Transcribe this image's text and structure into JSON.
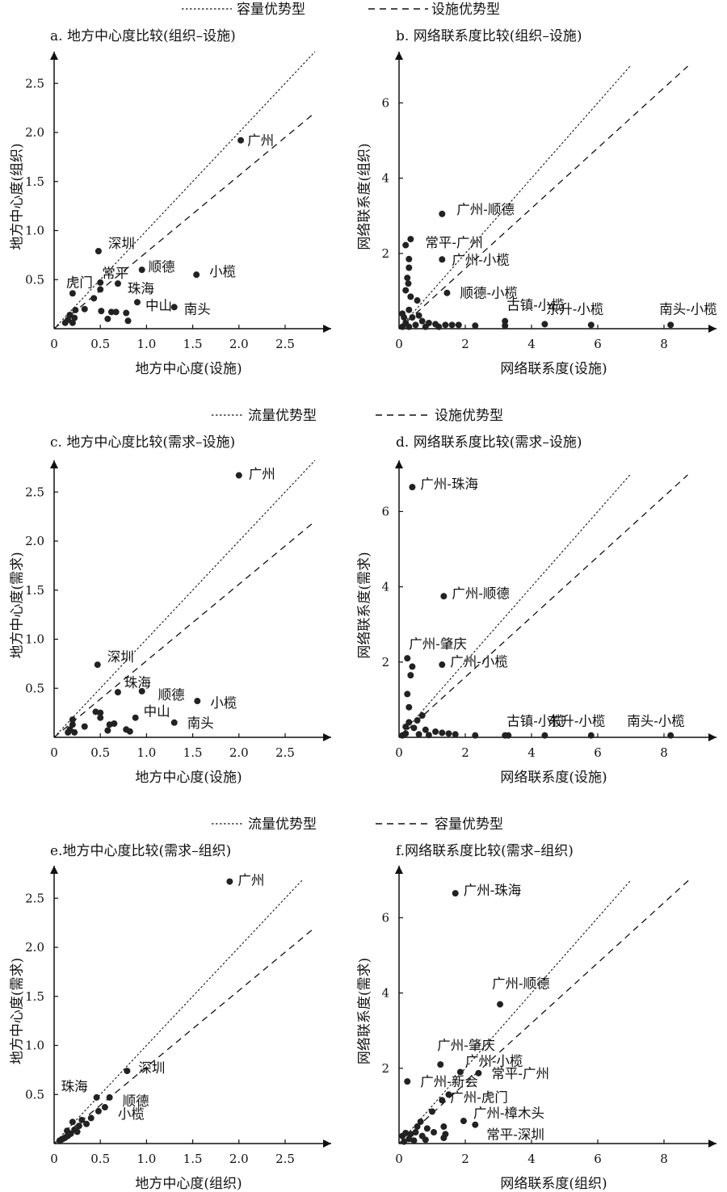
{
  "legends": [
    {
      "dotted": "容量优势型",
      "dashed": "设施优势型"
    },
    {
      "dotted": "流量优势型",
      "dashed": "设施优势型"
    },
    {
      "dotted": "流量优势型",
      "dashed": "容量优势型"
    }
  ],
  "chart_data": [
    {
      "id": "a",
      "type": "scatter",
      "title": "a. 地方中心度比较(组织–设施)",
      "xlabel": "地方中心度(设施)",
      "ylabel": "地方中心度(组织)",
      "xticks": [
        0,
        0.5,
        1.0,
        1.5,
        2.0,
        2.5
      ],
      "yticks": [
        0.5,
        1.0,
        1.5,
        2.0,
        2.5
      ],
      "xlim": [
        0,
        2.95
      ],
      "ylim": [
        0,
        2.95
      ],
      "ref_lines": [
        {
          "style": "dotted",
          "slope": 1.0
        },
        {
          "style": "dashed",
          "slope": 0.78
        }
      ],
      "points": [
        {
          "x": 2.02,
          "y": 1.92,
          "label": "广州"
        },
        {
          "x": 0.48,
          "y": 0.79,
          "label": "深圳"
        },
        {
          "x": 0.5,
          "y": 0.47,
          "label": "常平"
        },
        {
          "x": 0.95,
          "y": 0.6,
          "label": "顺德"
        },
        {
          "x": 1.54,
          "y": 0.55,
          "label": "小榄"
        },
        {
          "x": 0.69,
          "y": 0.46,
          "label": "珠海"
        },
        {
          "x": 0.9,
          "y": 0.27,
          "label": "中山"
        },
        {
          "x": 1.3,
          "y": 0.22,
          "label": "南头"
        },
        {
          "x": 0.2,
          "y": 0.36,
          "label": "虎门"
        },
        {
          "x": 0.5,
          "y": 0.4
        },
        {
          "x": 0.43,
          "y": 0.31
        },
        {
          "x": 0.33,
          "y": 0.2
        },
        {
          "x": 0.23,
          "y": 0.19
        },
        {
          "x": 0.17,
          "y": 0.14
        },
        {
          "x": 0.15,
          "y": 0.09
        },
        {
          "x": 0.12,
          "y": 0.06
        },
        {
          "x": 0.2,
          "y": 0.06
        },
        {
          "x": 0.22,
          "y": 0.11
        },
        {
          "x": 0.51,
          "y": 0.18
        },
        {
          "x": 0.58,
          "y": 0.1
        },
        {
          "x": 0.62,
          "y": 0.17
        },
        {
          "x": 0.67,
          "y": 0.17
        },
        {
          "x": 0.78,
          "y": 0.16
        },
        {
          "x": 0.8,
          "y": 0.08
        }
      ]
    },
    {
      "id": "b",
      "type": "scatter",
      "title": "b. 网络联系度比较(组织–设施)",
      "xlabel": "网络联系度(设施)",
      "ylabel": "网络联系度(组织)",
      "xticks": [
        0,
        2,
        4,
        6,
        8
      ],
      "yticks": [
        2,
        4,
        6
      ],
      "xlim": [
        0,
        9.5
      ],
      "ylim": [
        0,
        7.0
      ],
      "ref_lines": [
        {
          "style": "dotted",
          "slope": 1.0
        },
        {
          "style": "dashed",
          "slope": 0.8
        }
      ],
      "points": [
        {
          "x": 1.3,
          "y": 3.05,
          "label": "广州-顺德"
        },
        {
          "x": 0.35,
          "y": 2.38,
          "label": "常平-广州"
        },
        {
          "x": 1.3,
          "y": 1.84,
          "label": "广州-小榄"
        },
        {
          "x": 1.45,
          "y": 0.95,
          "label": "顺德-小榄"
        },
        {
          "x": 3.2,
          "y": 0.2,
          "label": "古镇-小榄"
        },
        {
          "x": 5.8,
          "y": 0.1,
          "label": "东升-小榄"
        },
        {
          "x": 8.2,
          "y": 0.1,
          "label": "南头-小榄"
        },
        {
          "x": 0.2,
          "y": 2.22
        },
        {
          "x": 0.3,
          "y": 1.85
        },
        {
          "x": 0.3,
          "y": 1.62
        },
        {
          "x": 0.25,
          "y": 1.35
        },
        {
          "x": 0.28,
          "y": 1.2
        },
        {
          "x": 0.2,
          "y": 1.02
        },
        {
          "x": 0.35,
          "y": 0.85
        },
        {
          "x": 0.55,
          "y": 0.75
        },
        {
          "x": 0.3,
          "y": 0.5
        },
        {
          "x": 0.1,
          "y": 0.4
        },
        {
          "x": 0.15,
          "y": 0.3
        },
        {
          "x": 0.4,
          "y": 0.3
        },
        {
          "x": 0.6,
          "y": 0.35
        },
        {
          "x": 0.7,
          "y": 0.2
        },
        {
          "x": 0.9,
          "y": 0.15
        },
        {
          "x": 0.2,
          "y": 0.15
        },
        {
          "x": 0.5,
          "y": 0.1
        },
        {
          "x": 1.1,
          "y": 0.12
        },
        {
          "x": 1.4,
          "y": 0.1
        },
        {
          "x": 1.6,
          "y": 0.1
        },
        {
          "x": 1.8,
          "y": 0.1
        },
        {
          "x": 2.3,
          "y": 0.08
        },
        {
          "x": 3.2,
          "y": 0.08
        },
        {
          "x": 4.4,
          "y": 0.12
        },
        {
          "x": 0.1,
          "y": 0.05
        },
        {
          "x": 0.3,
          "y": 0.05
        },
        {
          "x": 0.8,
          "y": 0.05
        },
        {
          "x": 1.2,
          "y": 0.05
        }
      ]
    },
    {
      "id": "c",
      "type": "scatter",
      "title": "c. 地方中心度比较(需求–设施)",
      "xlabel": "地方中心度(设施)",
      "ylabel": "地方中心度(需求)",
      "xticks": [
        0,
        0.5,
        1.0,
        1.5,
        2.0,
        2.5
      ],
      "yticks": [
        0.5,
        1.0,
        1.5,
        2.0,
        2.5
      ],
      "xlim": [
        0,
        2.95
      ],
      "ylim": [
        0,
        2.95
      ],
      "ref_lines": [
        {
          "style": "dotted",
          "slope": 1.0
        },
        {
          "style": "dashed",
          "slope": 0.78
        }
      ],
      "points": [
        {
          "x": 2.0,
          "y": 2.67,
          "label": "广州"
        },
        {
          "x": 0.47,
          "y": 0.74,
          "label": "深圳"
        },
        {
          "x": 0.69,
          "y": 0.46,
          "label": "珠海"
        },
        {
          "x": 0.95,
          "y": 0.47,
          "label": "顺德"
        },
        {
          "x": 1.55,
          "y": 0.37,
          "label": "小榄"
        },
        {
          "x": 0.88,
          "y": 0.2,
          "label": "中山"
        },
        {
          "x": 1.3,
          "y": 0.15,
          "label": "南头"
        },
        {
          "x": 0.45,
          "y": 0.26
        },
        {
          "x": 0.5,
          "y": 0.25
        },
        {
          "x": 0.5,
          "y": 0.2
        },
        {
          "x": 0.33,
          "y": 0.11
        },
        {
          "x": 0.2,
          "y": 0.18
        },
        {
          "x": 0.2,
          "y": 0.13
        },
        {
          "x": 0.17,
          "y": 0.08
        },
        {
          "x": 0.15,
          "y": 0.05
        },
        {
          "x": 0.22,
          "y": 0.05
        },
        {
          "x": 0.6,
          "y": 0.13
        },
        {
          "x": 0.65,
          "y": 0.14
        },
        {
          "x": 0.58,
          "y": 0.07
        },
        {
          "x": 0.78,
          "y": 0.08
        },
        {
          "x": 0.82,
          "y": 0.06
        }
      ]
    },
    {
      "id": "d",
      "type": "scatter",
      "title": "d. 网络联系度比较(需求–设施)",
      "xlabel": "网络联系度(设施)",
      "ylabel": "网络联系度(需求)",
      "xticks": [
        0,
        2,
        4,
        6,
        8
      ],
      "yticks": [
        2,
        4,
        6
      ],
      "xlim": [
        0,
        9.5
      ],
      "ylim": [
        0,
        7.0
      ],
      "ref_lines": [
        {
          "style": "dotted",
          "slope": 1.0
        },
        {
          "style": "dashed",
          "slope": 0.8
        }
      ],
      "points": [
        {
          "x": 0.4,
          "y": 6.65,
          "label": "广州-珠海"
        },
        {
          "x": 1.35,
          "y": 3.75,
          "label": "广州-顺德"
        },
        {
          "x": 0.25,
          "y": 2.1,
          "label": "广州-肇庆"
        },
        {
          "x": 1.3,
          "y": 1.93,
          "label": "广州-小榄"
        },
        {
          "x": 3.2,
          "y": 0.05,
          "label": "古镇-小榄"
        },
        {
          "x": 5.8,
          "y": 0.05,
          "label": "东升-小榄"
        },
        {
          "x": 8.2,
          "y": 0.05,
          "label": "南头-小榄"
        },
        {
          "x": 0.4,
          "y": 1.88
        },
        {
          "x": 0.35,
          "y": 1.65
        },
        {
          "x": 0.25,
          "y": 1.15
        },
        {
          "x": 0.3,
          "y": 0.8
        },
        {
          "x": 0.7,
          "y": 0.58
        },
        {
          "x": 0.55,
          "y": 0.45
        },
        {
          "x": 0.3,
          "y": 0.4
        },
        {
          "x": 0.2,
          "y": 0.28
        },
        {
          "x": 0.45,
          "y": 0.25
        },
        {
          "x": 0.8,
          "y": 0.2
        },
        {
          "x": 1.1,
          "y": 0.15
        },
        {
          "x": 1.3,
          "y": 0.12
        },
        {
          "x": 1.5,
          "y": 0.1
        },
        {
          "x": 1.7,
          "y": 0.08
        },
        {
          "x": 2.3,
          "y": 0.05
        },
        {
          "x": 3.3,
          "y": 0.05
        },
        {
          "x": 4.4,
          "y": 0.05
        },
        {
          "x": 0.1,
          "y": 0.05
        },
        {
          "x": 0.2,
          "y": 0.1
        },
        {
          "x": 0.6,
          "y": 0.08
        },
        {
          "x": 0.9,
          "y": 0.06
        }
      ]
    },
    {
      "id": "e",
      "type": "scatter",
      "title": "e.地方中心度比较(需求–组织)",
      "xlabel": "地方中心度(组织)",
      "ylabel": "地方中心度(需求)",
      "xticks": [
        0,
        0.5,
        1.0,
        1.5,
        2.0,
        2.5
      ],
      "yticks": [
        0.5,
        1.0,
        1.5,
        2.0,
        2.5
      ],
      "xlim": [
        0,
        2.95
      ],
      "ylim": [
        0,
        2.95
      ],
      "ref_lines": [
        {
          "style": "dotted",
          "slope": 1.0
        },
        {
          "style": "dashed",
          "slope": 0.78
        }
      ],
      "points": [
        {
          "x": 1.9,
          "y": 2.67,
          "label": "广州"
        },
        {
          "x": 0.79,
          "y": 0.74,
          "label": "深圳"
        },
        {
          "x": 0.46,
          "y": 0.47,
          "label": "珠海"
        },
        {
          "x": 0.6,
          "y": 0.47,
          "label": "顺德"
        },
        {
          "x": 0.55,
          "y": 0.37,
          "label": "小榄"
        },
        {
          "x": 0.48,
          "y": 0.33
        },
        {
          "x": 0.4,
          "y": 0.26
        },
        {
          "x": 0.35,
          "y": 0.2
        },
        {
          "x": 0.3,
          "y": 0.24
        },
        {
          "x": 0.27,
          "y": 0.18
        },
        {
          "x": 0.22,
          "y": 0.14
        },
        {
          "x": 0.2,
          "y": 0.22
        },
        {
          "x": 0.18,
          "y": 0.1
        },
        {
          "x": 0.15,
          "y": 0.08
        },
        {
          "x": 0.12,
          "y": 0.06
        },
        {
          "x": 0.1,
          "y": 0.05
        },
        {
          "x": 0.08,
          "y": 0.04
        },
        {
          "x": 0.06,
          "y": 0.03
        },
        {
          "x": 0.14,
          "y": 0.13
        },
        {
          "x": 0.25,
          "y": 0.12
        }
      ]
    },
    {
      "id": "f",
      "type": "scatter",
      "title": "f.网络联系度比较(需求–组织)",
      "xlabel": "网络联系度(组织)",
      "ylabel": "网络联系度(需求)",
      "xticks": [
        0,
        2,
        4,
        6,
        8
      ],
      "yticks": [
        2,
        4,
        6
      ],
      "xlim": [
        0,
        9.5
      ],
      "ylim": [
        0,
        7.0
      ],
      "ref_lines": [
        {
          "style": "dotted",
          "slope": 1.0
        },
        {
          "style": "dashed",
          "slope": 0.8
        }
      ],
      "points": [
        {
          "x": 1.7,
          "y": 6.65,
          "label": "广州-珠海"
        },
        {
          "x": 3.05,
          "y": 3.7,
          "label": "广州-顺德"
        },
        {
          "x": 1.25,
          "y": 2.1,
          "label": "广州-肇庆"
        },
        {
          "x": 1.85,
          "y": 1.9,
          "label": "广州-小榄"
        },
        {
          "x": 2.4,
          "y": 1.87,
          "label": "常平-广州"
        },
        {
          "x": 0.25,
          "y": 1.65,
          "label": "广州-新会"
        },
        {
          "x": 1.3,
          "y": 1.15,
          "label": "广州-虎门"
        },
        {
          "x": 1.95,
          "y": 0.6,
          "label": "广州-樟木头"
        },
        {
          "x": 2.3,
          "y": 0.5,
          "label": "常平-深圳"
        },
        {
          "x": 1.5,
          "y": 1.3
        },
        {
          "x": 1.0,
          "y": 0.85
        },
        {
          "x": 0.65,
          "y": 0.58
        },
        {
          "x": 0.55,
          "y": 0.45
        },
        {
          "x": 0.85,
          "y": 0.4
        },
        {
          "x": 0.5,
          "y": 0.3
        },
        {
          "x": 0.35,
          "y": 0.25
        },
        {
          "x": 0.2,
          "y": 0.28
        },
        {
          "x": 0.1,
          "y": 0.2
        },
        {
          "x": 0.3,
          "y": 0.12
        },
        {
          "x": 0.15,
          "y": 0.05
        },
        {
          "x": 0.7,
          "y": 0.2
        },
        {
          "x": 1.05,
          "y": 0.3
        },
        {
          "x": 1.4,
          "y": 0.25
        },
        {
          "x": 1.35,
          "y": 0.45
        },
        {
          "x": 0.45,
          "y": 0.08
        },
        {
          "x": 0.8,
          "y": 0.1
        },
        {
          "x": 1.35,
          "y": 0.15
        }
      ]
    }
  ]
}
